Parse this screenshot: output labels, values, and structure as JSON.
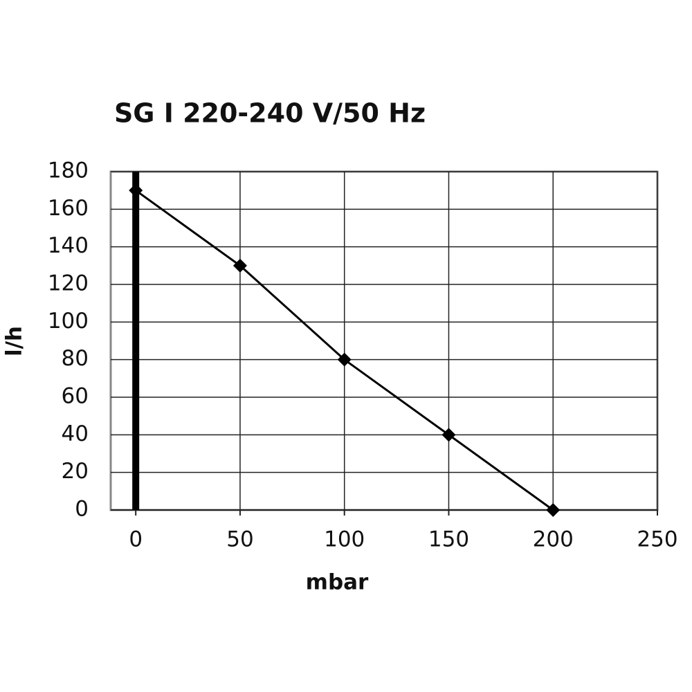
{
  "chart_data": {
    "type": "line",
    "title": "SG I 220-240 V/50 Hz",
    "x_label": "mbar",
    "y_label": "l/h",
    "x": [
      0,
      50,
      100,
      150,
      200
    ],
    "series": [
      {
        "color": "#000000",
        "values": [
          170,
          130,
          80,
          40,
          0
        ]
      }
    ],
    "xlim": [
      -12,
      250
    ],
    "xticks": [
      0,
      50,
      100,
      150,
      200,
      250
    ],
    "ylim": [
      0,
      180
    ],
    "yticks": [
      0,
      20,
      40,
      60,
      80,
      100,
      120,
      140,
      160,
      180
    ],
    "grid": true
  }
}
